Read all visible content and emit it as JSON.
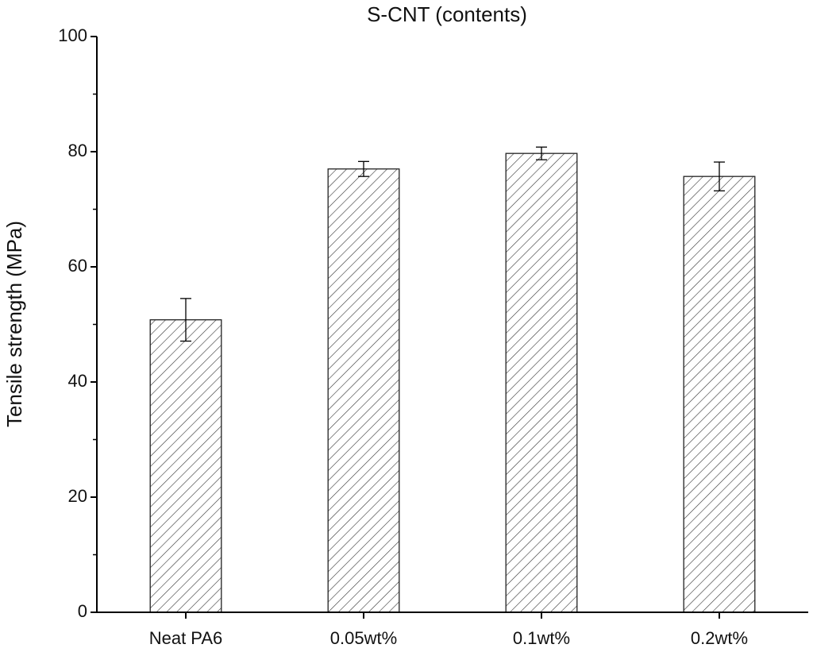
{
  "chart_data": {
    "type": "bar",
    "title": "S-CNT (contents)",
    "y_label": "Tensile strength (MPa)",
    "categories": [
      "Neat PA6",
      "0.05wt%",
      "0.1wt%",
      "0.2wt%"
    ],
    "values": [
      50.8,
      77.0,
      79.7,
      75.7
    ],
    "errors": [
      3.7,
      1.3,
      1.1,
      2.5
    ],
    "color": "#ffffff",
    "ylim": [
      0,
      100
    ],
    "yticks": [
      0,
      20,
      40,
      60,
      80,
      100
    ],
    "grid": false
  }
}
